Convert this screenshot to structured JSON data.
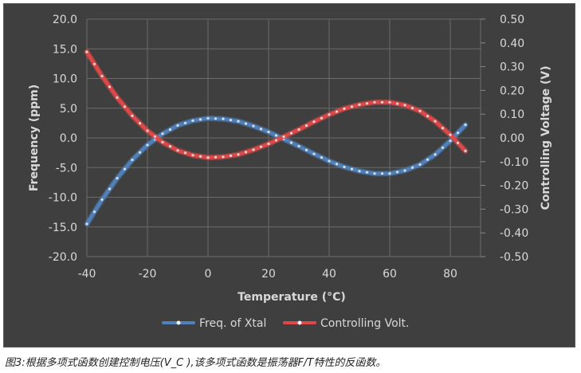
{
  "caption": "图3:根据多项式函数创建控制电压(V_C ),该多项式函数是振荡器F/T特性的反函数。",
  "chart_data": {
    "type": "line",
    "xlabel": "Temperature (°C)",
    "ylabel": "Frequency (ppm)",
    "y2label": "Controlling Voltage (V)",
    "xlim": [
      -40,
      90
    ],
    "x_ticks": [
      -40,
      -20,
      0,
      20,
      40,
      60,
      80
    ],
    "ylim": [
      -20,
      20
    ],
    "y_ticks": [
      -20,
      -15,
      -10,
      -5,
      0,
      5,
      10,
      15,
      20
    ],
    "y_tick_labels": [
      "-20.0",
      "-15.0",
      "-10.0",
      "-5.0",
      "0.0",
      "5.0",
      "10.0",
      "15.0",
      "20.0"
    ],
    "y2lim": [
      -0.5,
      0.5
    ],
    "y2_ticks": [
      -0.5,
      -0.4,
      -0.3,
      -0.2,
      -0.1,
      0,
      0.1,
      0.2,
      0.3,
      0.4,
      0.5
    ],
    "y2_tick_labels": [
      "-0.50",
      "-0.40",
      "-0.30",
      "-0.20",
      "-0.10",
      "0.00",
      "0.10",
      "0.20",
      "0.30",
      "0.40",
      "0.50"
    ],
    "grid": true,
    "legend_position": "bottom",
    "series": [
      {
        "name": "Freq. of Xtal",
        "axis": "left",
        "color": "#4f81bd",
        "x": [
          -40,
          -35,
          -30,
          -25,
          -20,
          -15,
          -10,
          -5,
          0,
          5,
          10,
          15,
          20,
          25,
          30,
          35,
          40,
          45,
          50,
          55,
          60,
          65,
          70,
          75,
          80,
          85
        ],
        "y": [
          -14.5,
          -10.4,
          -6.8,
          -3.7,
          -1.2,
          0.7,
          2.1,
          2.9,
          3.3,
          3.2,
          2.8,
          2.0,
          1.0,
          -0.2,
          -1.4,
          -2.7,
          -3.9,
          -4.9,
          -5.6,
          -6.0,
          -6.0,
          -5.5,
          -4.5,
          -2.8,
          -0.5,
          2.2
        ]
      },
      {
        "name": "Controlling Volt.",
        "axis": "right",
        "color": "#e04848",
        "x": [
          -40,
          -35,
          -30,
          -25,
          -20,
          -15,
          -10,
          -5,
          0,
          5,
          10,
          15,
          20,
          25,
          30,
          35,
          40,
          45,
          50,
          55,
          60,
          65,
          70,
          75,
          80,
          85
        ],
        "y": [
          0.362,
          0.26,
          0.17,
          0.093,
          0.03,
          -0.018,
          -0.053,
          -0.073,
          -0.083,
          -0.08,
          -0.07,
          -0.05,
          -0.025,
          0.005,
          0.035,
          0.068,
          0.098,
          0.123,
          0.14,
          0.15,
          0.15,
          0.138,
          0.113,
          0.07,
          0.013,
          -0.055
        ]
      }
    ]
  }
}
